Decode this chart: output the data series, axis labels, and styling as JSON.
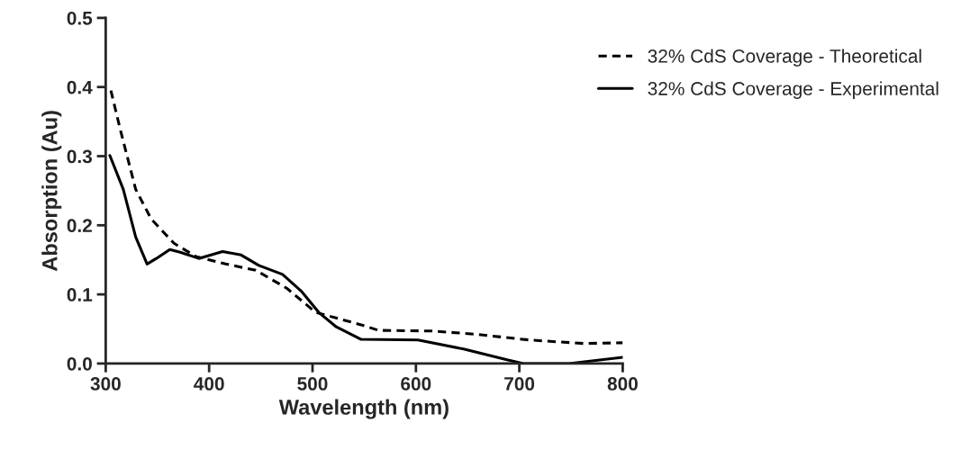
{
  "chart_data": {
    "type": "line",
    "xlabel": "Wavelength (nm)",
    "ylabel": "Absorption (Au)",
    "xlim": [
      300,
      800
    ],
    "ylim": [
      0,
      0.5
    ],
    "xticks": [
      300,
      400,
      500,
      600,
      700,
      800
    ],
    "yticks": [
      {
        "value": 0,
        "label": "0.0"
      },
      0.1,
      0.2,
      0.3,
      0.4,
      0.5
    ],
    "grid": false,
    "legend": "top right",
    "marker": "none",
    "series": [
      {
        "name": "32% CdS Coverage - Theoretical",
        "color": "#000000",
        "line_style": "dashed",
        "x": [
          305,
          314,
          329,
          344,
          366,
          387,
          416,
          445,
          475,
          503,
          547,
          564,
          617,
          660,
          710,
          762,
          800
        ],
        "values": [
          0.395,
          0.339,
          0.252,
          0.209,
          0.174,
          0.155,
          0.144,
          0.135,
          0.109,
          0.074,
          0.056,
          0.048,
          0.047,
          0.042,
          0.034,
          0.029,
          0.03
        ]
      },
      {
        "name": "32% CdS Coverage - Experimental",
        "color": "#000000",
        "line_style": "solid",
        "x": [
          304,
          317,
          329,
          340,
          349,
          362,
          372,
          390,
          413,
          431,
          448,
          471,
          489,
          506,
          523,
          547,
          602,
          646,
          689,
          704,
          748,
          800
        ],
        "values": [
          0.301,
          0.252,
          0.183,
          0.144,
          0.152,
          0.165,
          0.161,
          0.152,
          0.162,
          0.157,
          0.142,
          0.129,
          0.105,
          0.074,
          0.053,
          0.035,
          0.034,
          0.021,
          0.005,
          0.0,
          0.0,
          0.009
        ]
      }
    ]
  }
}
